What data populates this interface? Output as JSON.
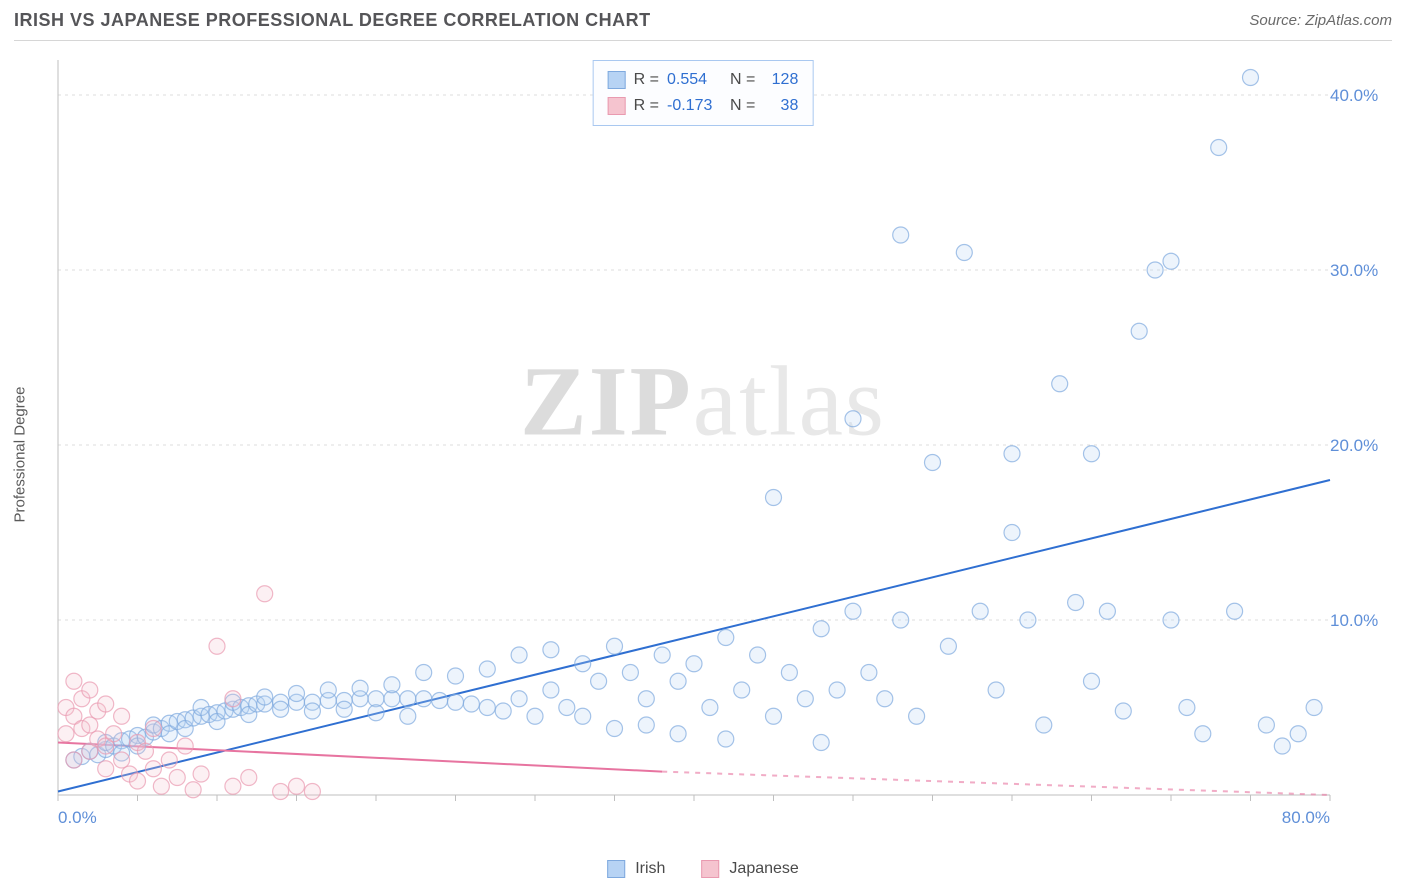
{
  "header": {
    "title": "IRISH VS JAPANESE PROFESSIONAL DEGREE CORRELATION CHART",
    "source_label": "Source: ",
    "source_name": "ZipAtlas.com"
  },
  "watermark": {
    "zip": "ZIP",
    "atlas": "atlas"
  },
  "y_axis": {
    "label": "Professional Degree"
  },
  "chart": {
    "type": "scatter",
    "xlim": [
      0,
      80
    ],
    "ylim": [
      0,
      42
    ],
    "x_ticks": [
      0,
      5,
      10,
      15,
      20,
      25,
      30,
      35,
      40,
      45,
      50,
      55,
      60,
      65,
      70,
      75,
      80
    ],
    "x_tick_labels": {
      "0": "0.0%",
      "80": "80.0%"
    },
    "y_ticks": [
      10,
      20,
      30,
      40
    ],
    "y_tick_labels": {
      "10": "10.0%",
      "20": "20.0%",
      "30": "30.0%",
      "40": "40.0%"
    },
    "grid_color": "#dedede",
    "axis_color": "#bfbfbf",
    "background_color": "#ffffff",
    "marker_radius": 8,
    "marker_fill_opacity": 0.25,
    "marker_stroke_opacity": 0.7,
    "series": [
      {
        "name": "Irish",
        "color_fill": "#b7d3f4",
        "color_stroke": "#7fa9de",
        "r_value": 0.554,
        "r_display": "0.554",
        "n_value": 128,
        "trend_line": {
          "x1": 0,
          "y1": 0.2,
          "x2": 80,
          "y2": 18.0,
          "stroke": "#2f6fd1",
          "width": 2,
          "solid_until_x": 80
        },
        "points": [
          [
            1,
            2.0
          ],
          [
            1.5,
            2.2
          ],
          [
            2,
            2.5
          ],
          [
            2.5,
            2.3
          ],
          [
            3,
            2.6
          ],
          [
            3,
            3.0
          ],
          [
            3.5,
            2.8
          ],
          [
            4,
            3.1
          ],
          [
            4,
            2.4
          ],
          [
            4.5,
            3.2
          ],
          [
            5,
            3.4
          ],
          [
            5,
            2.8
          ],
          [
            5.5,
            3.3
          ],
          [
            6,
            3.6
          ],
          [
            6,
            4.0
          ],
          [
            6.5,
            3.8
          ],
          [
            7,
            4.1
          ],
          [
            7,
            3.5
          ],
          [
            7.5,
            4.2
          ],
          [
            8,
            4.3
          ],
          [
            8,
            3.8
          ],
          [
            8.5,
            4.4
          ],
          [
            9,
            4.5
          ],
          [
            9,
            5.0
          ],
          [
            9.5,
            4.6
          ],
          [
            10,
            4.7
          ],
          [
            10,
            4.2
          ],
          [
            10.5,
            4.8
          ],
          [
            11,
            4.9
          ],
          [
            11,
            5.3
          ],
          [
            11.5,
            5.0
          ],
          [
            12,
            5.1
          ],
          [
            12,
            4.6
          ],
          [
            12.5,
            5.2
          ],
          [
            13,
            5.2
          ],
          [
            13,
            5.6
          ],
          [
            14,
            5.3
          ],
          [
            14,
            4.9
          ],
          [
            15,
            5.3
          ],
          [
            15,
            5.8
          ],
          [
            16,
            5.3
          ],
          [
            16,
            4.8
          ],
          [
            17,
            5.4
          ],
          [
            17,
            6.0
          ],
          [
            18,
            5.4
          ],
          [
            18,
            4.9
          ],
          [
            19,
            5.5
          ],
          [
            19,
            6.1
          ],
          [
            20,
            5.5
          ],
          [
            20,
            4.7
          ],
          [
            21,
            5.5
          ],
          [
            21,
            6.3
          ],
          [
            22,
            5.5
          ],
          [
            22,
            4.5
          ],
          [
            23,
            5.5
          ],
          [
            23,
            7.0
          ],
          [
            24,
            5.4
          ],
          [
            25,
            5.3
          ],
          [
            25,
            6.8
          ],
          [
            26,
            5.2
          ],
          [
            27,
            5.0
          ],
          [
            27,
            7.2
          ],
          [
            28,
            4.8
          ],
          [
            29,
            5.5
          ],
          [
            29,
            8.0
          ],
          [
            30,
            4.5
          ],
          [
            31,
            6.0
          ],
          [
            31,
            8.3
          ],
          [
            32,
            5.0
          ],
          [
            33,
            7.5
          ],
          [
            33,
            4.5
          ],
          [
            34,
            6.5
          ],
          [
            35,
            8.5
          ],
          [
            35,
            3.8
          ],
          [
            36,
            7.0
          ],
          [
            37,
            5.5
          ],
          [
            37,
            4.0
          ],
          [
            38,
            8.0
          ],
          [
            39,
            6.5
          ],
          [
            39,
            3.5
          ],
          [
            40,
            7.5
          ],
          [
            41,
            5.0
          ],
          [
            42,
            9.0
          ],
          [
            42,
            3.2
          ],
          [
            43,
            6.0
          ],
          [
            44,
            8.0
          ],
          [
            45,
            4.5
          ],
          [
            45,
            17.0
          ],
          [
            46,
            7.0
          ],
          [
            47,
            5.5
          ],
          [
            48,
            9.5
          ],
          [
            48,
            3.0
          ],
          [
            49,
            6.0
          ],
          [
            50,
            10.5
          ],
          [
            50,
            21.5
          ],
          [
            51,
            7.0
          ],
          [
            52,
            5.5
          ],
          [
            53,
            10.0
          ],
          [
            53,
            32.0
          ],
          [
            54,
            4.5
          ],
          [
            55,
            19.0
          ],
          [
            56,
            8.5
          ],
          [
            57,
            31.0
          ],
          [
            58,
            10.5
          ],
          [
            59,
            6.0
          ],
          [
            60,
            19.5
          ],
          [
            60,
            15.0
          ],
          [
            61,
            10.0
          ],
          [
            62,
            4.0
          ],
          [
            63,
            23.5
          ],
          [
            64,
            11.0
          ],
          [
            65,
            6.5
          ],
          [
            65,
            19.5
          ],
          [
            66,
            10.5
          ],
          [
            67,
            4.8
          ],
          [
            68,
            26.5
          ],
          [
            69,
            30.0
          ],
          [
            70,
            10.0
          ],
          [
            70,
            30.5
          ],
          [
            71,
            5.0
          ],
          [
            72,
            3.5
          ],
          [
            73,
            37.0
          ],
          [
            74,
            10.5
          ],
          [
            75,
            41.0
          ],
          [
            76,
            4.0
          ],
          [
            77,
            2.8
          ],
          [
            78,
            3.5
          ],
          [
            79,
            5.0
          ]
        ]
      },
      {
        "name": "Japanese",
        "color_fill": "#f5c4cf",
        "color_stroke": "#e99ab0",
        "r_value": -0.173,
        "r_display": "-0.173",
        "n_value": 38,
        "trend_line": {
          "x1": 0,
          "y1": 3.0,
          "x2": 80,
          "y2": -0.5,
          "stroke": "#e774a0",
          "width": 2,
          "solid_until_x": 38
        },
        "points": [
          [
            0.5,
            3.5
          ],
          [
            0.5,
            5.0
          ],
          [
            1,
            4.5
          ],
          [
            1,
            6.5
          ],
          [
            1,
            2.0
          ],
          [
            1.5,
            3.8
          ],
          [
            1.5,
            5.5
          ],
          [
            2,
            4.0
          ],
          [
            2,
            2.5
          ],
          [
            2,
            6.0
          ],
          [
            2.5,
            3.2
          ],
          [
            2.5,
            4.8
          ],
          [
            3,
            2.8
          ],
          [
            3,
            5.2
          ],
          [
            3,
            1.5
          ],
          [
            3.5,
            3.5
          ],
          [
            4,
            2.0
          ],
          [
            4,
            4.5
          ],
          [
            4.5,
            1.2
          ],
          [
            5,
            3.0
          ],
          [
            5,
            0.8
          ],
          [
            5.5,
            2.5
          ],
          [
            6,
            1.5
          ],
          [
            6,
            3.8
          ],
          [
            6.5,
            0.5
          ],
          [
            7,
            2.0
          ],
          [
            7.5,
            1.0
          ],
          [
            8,
            2.8
          ],
          [
            8.5,
            0.3
          ],
          [
            9,
            1.2
          ],
          [
            10,
            8.5
          ],
          [
            11,
            0.5
          ],
          [
            12,
            1.0
          ],
          [
            13,
            11.5
          ],
          [
            14,
            0.2
          ],
          [
            15,
            0.5
          ],
          [
            16,
            0.2
          ],
          [
            11,
            5.5
          ]
        ]
      }
    ]
  },
  "legend_top": {
    "r_label": "R =",
    "n_label": "N ="
  },
  "legend_bottom": {
    "items": [
      {
        "label": "Irish",
        "fill": "#b7d3f4",
        "stroke": "#7fa9de"
      },
      {
        "label": "Japanese",
        "fill": "#f5c4cf",
        "stroke": "#e99ab0"
      }
    ]
  }
}
